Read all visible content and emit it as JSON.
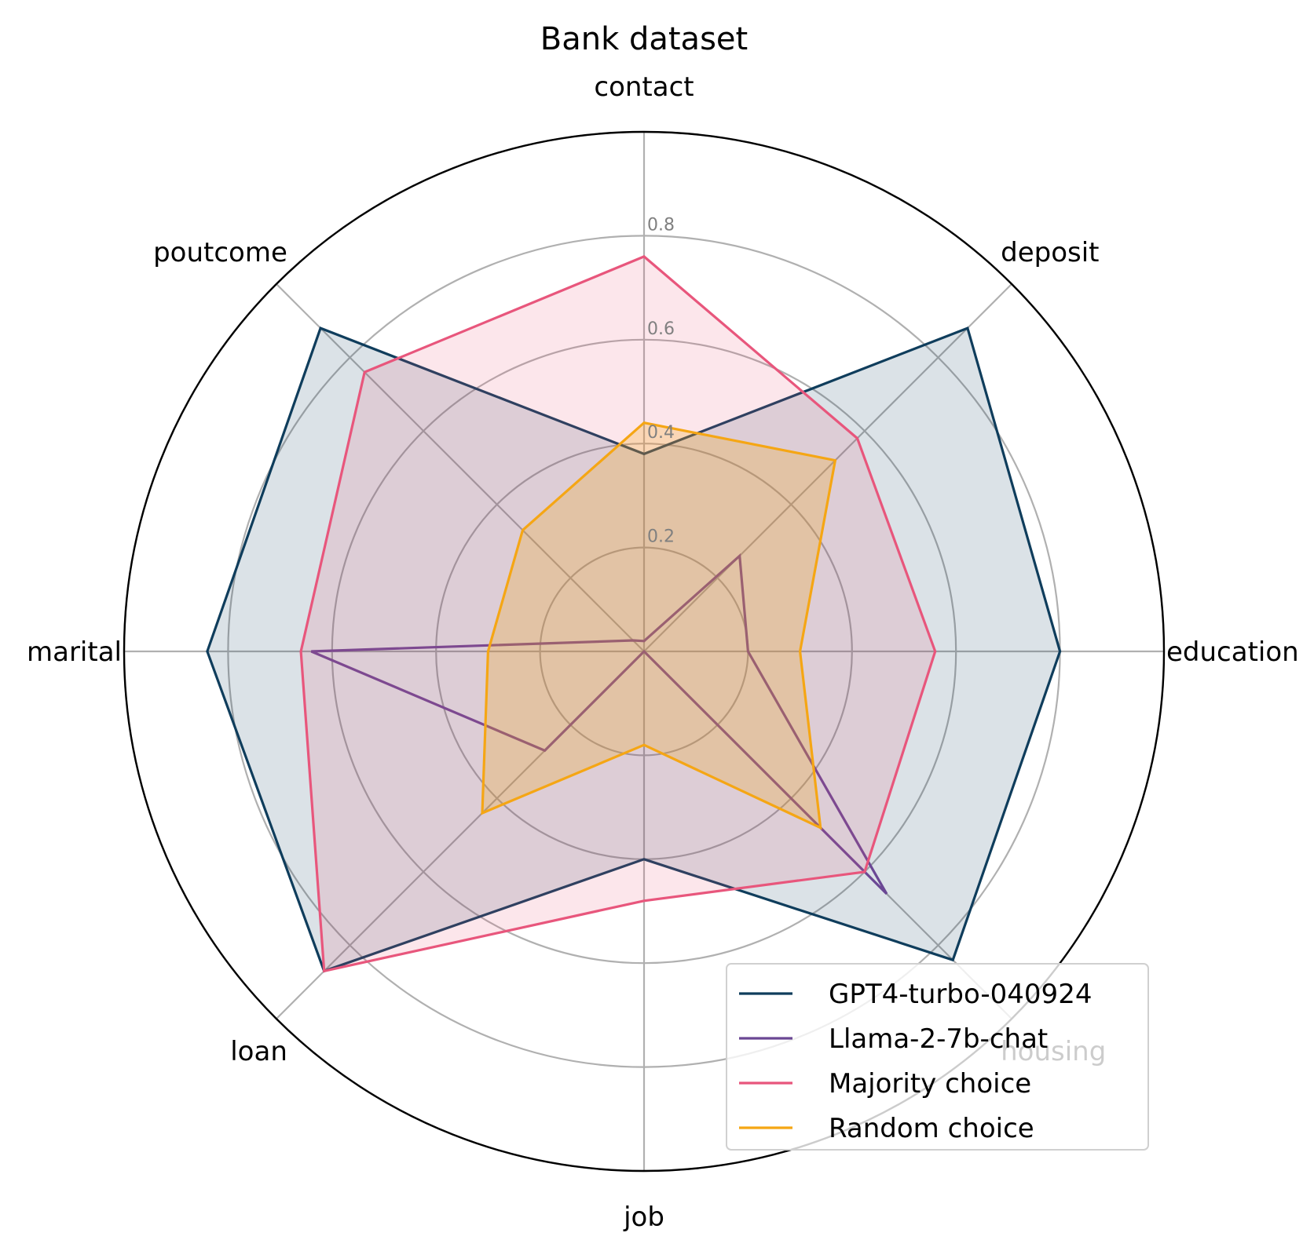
{
  "chart_data": {
    "type": "radar",
    "title": "Bank dataset",
    "axes": [
      "contact",
      "deposit",
      "education",
      "housing",
      "job",
      "loan",
      "marital",
      "poutcome"
    ],
    "rlim": [
      0,
      1.0
    ],
    "r_ticks": [
      0.2,
      0.4,
      0.6,
      0.8
    ],
    "r_tick_labels": [
      "0.2",
      "0.4",
      "0.6",
      "0.8"
    ],
    "grid": true,
    "legend_position": "lower-right",
    "series": [
      {
        "name": "GPT4-turbo-040924",
        "color": "#0f3d5c",
        "fill_opacity": 0.15,
        "values": [
          0.38,
          0.88,
          0.8,
          0.84,
          0.4,
          0.87,
          0.84,
          0.88
        ]
      },
      {
        "name": "Llama-2-7b-chat",
        "color": "#6a4794",
        "fill_opacity": 0.0,
        "values": [
          0.02,
          0.26,
          0.2,
          0.66,
          0.0,
          0.27,
          0.64,
          0.03
        ]
      },
      {
        "name": "Majority choice",
        "color": "#e8567c",
        "fill_opacity": 0.15,
        "values": [
          0.76,
          0.58,
          0.56,
          0.6,
          0.48,
          0.87,
          0.66,
          0.76
        ]
      },
      {
        "name": "Random choice",
        "color": "#f5a614",
        "fill_opacity": 0.25,
        "values": [
          0.44,
          0.52,
          0.3,
          0.48,
          0.18,
          0.44,
          0.3,
          0.33
        ]
      }
    ]
  }
}
